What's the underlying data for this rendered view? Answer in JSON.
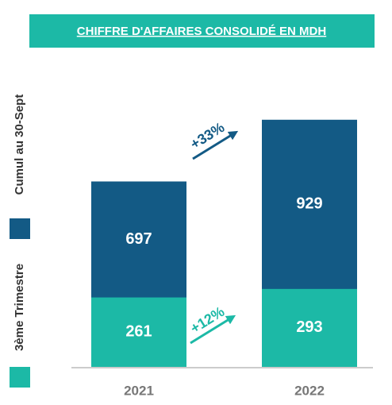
{
  "chart_data": {
    "type": "bar",
    "title": "CHIFFRE D'AFFAIRES CONSOLIDÉ EN MDH",
    "categories": [
      "2021",
      "2022"
    ],
    "series": [
      {
        "name": "3ème Trimestre",
        "color": "#1cb9a6",
        "values": [
          261,
          293
        ]
      },
      {
        "name": "Cumul au 30-Sept",
        "color": "#135a85",
        "values": [
          697,
          929
        ]
      }
    ],
    "ylim": [
      0,
      1000
    ],
    "annotations": [
      {
        "text": "+33%",
        "color": "#135a85"
      },
      {
        "text": "+12%",
        "color": "#1cb9a6"
      }
    ]
  }
}
